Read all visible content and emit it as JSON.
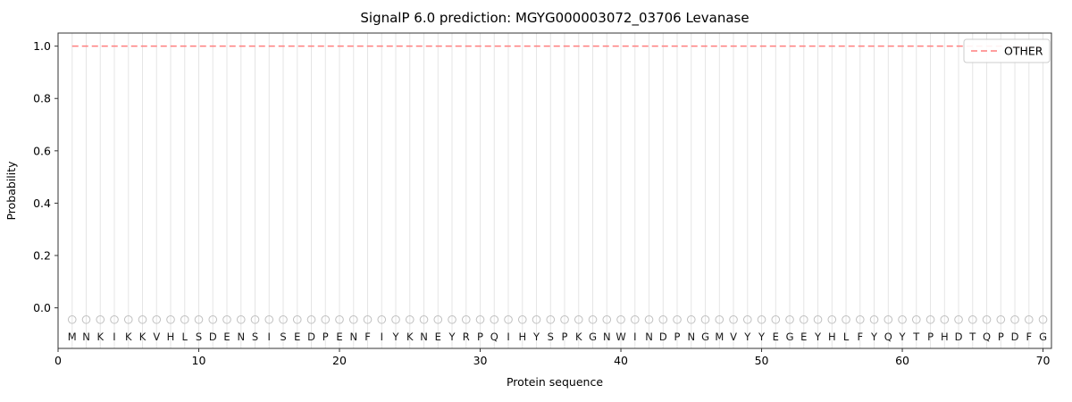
{
  "chart_data": {
    "type": "line",
    "title": "SignalP 6.0 prediction: MGYG000003072_03706 Levanase",
    "xlabel": "Protein sequence",
    "ylabel": "Probability",
    "xlim": [
      0,
      70.6
    ],
    "ylim": [
      -0.155,
      1.05
    ],
    "xticks": [
      0,
      10,
      20,
      30,
      40,
      50,
      60,
      70
    ],
    "yticks": [
      0.0,
      0.2,
      0.4,
      0.6,
      0.8,
      1.0
    ],
    "grid": {
      "vertical": "per-residue",
      "color": "#e5e5e5"
    },
    "sequence": "MNKIKKVHLSDENSISEDPENFIYKNEYRPQIHYSPKGNWINDPNGMVYYEGEYHLFYQYTPHDTQPDFG",
    "position_markers": {
      "shape": "circle-open",
      "y_value": -0.045,
      "color": "#c0c0c0"
    },
    "legend": {
      "position": "upper right",
      "entries": [
        {
          "label": "OTHER",
          "color": "#ff7f7f",
          "linestyle": "dashed"
        }
      ]
    },
    "series": [
      {
        "name": "OTHER",
        "color": "#ff7f7f",
        "linestyle": "dashed",
        "x_start": 1,
        "values": [
          1.0,
          1.0,
          1.0,
          1.0,
          1.0,
          1.0,
          1.0,
          1.0,
          1.0,
          1.0,
          1.0,
          1.0,
          1.0,
          1.0,
          1.0,
          1.0,
          1.0,
          1.0,
          1.0,
          1.0,
          1.0,
          1.0,
          1.0,
          1.0,
          1.0,
          1.0,
          1.0,
          1.0,
          1.0,
          1.0,
          1.0,
          1.0,
          1.0,
          1.0,
          1.0,
          1.0,
          1.0,
          1.0,
          1.0,
          1.0,
          1.0,
          1.0,
          1.0,
          1.0,
          1.0,
          1.0,
          1.0,
          1.0,
          1.0,
          1.0,
          1.0,
          1.0,
          1.0,
          1.0,
          1.0,
          1.0,
          1.0,
          1.0,
          1.0,
          1.0,
          1.0,
          1.0,
          1.0,
          1.0,
          1.0,
          1.0,
          1.0,
          1.0,
          1.0,
          1.0
        ]
      }
    ]
  }
}
